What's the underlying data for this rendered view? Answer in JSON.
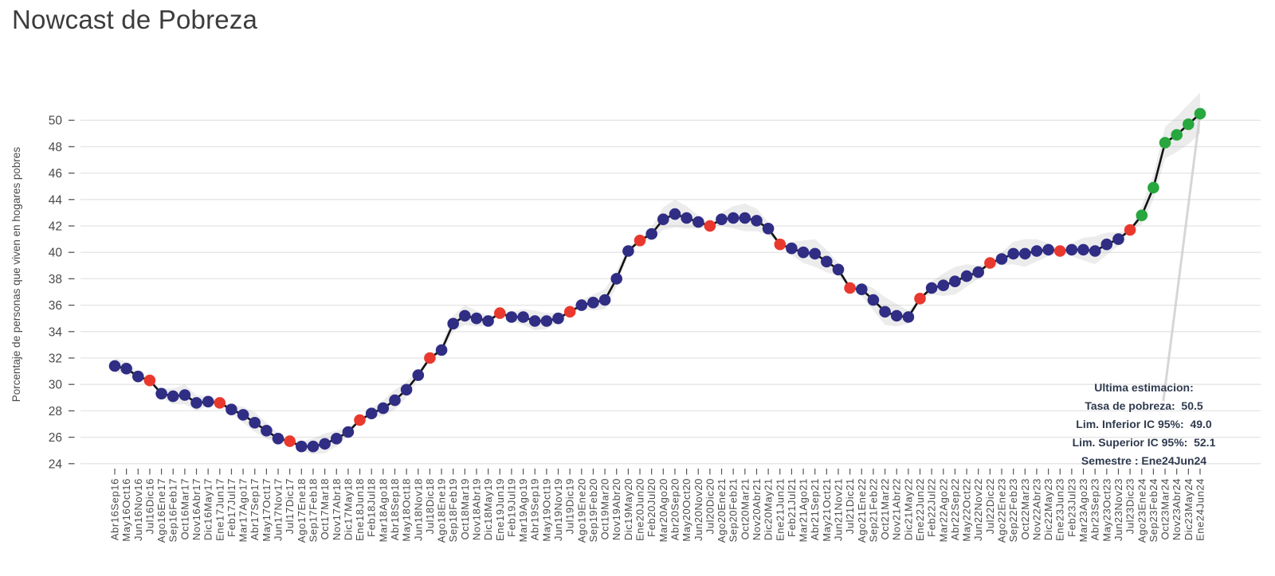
{
  "title": "Nowcast de Pobreza",
  "y_axis": {
    "title": "Porcentaje de personas que viven en hogares pobres",
    "ticks": [
      24,
      26,
      28,
      30,
      32,
      34,
      36,
      38,
      40,
      42,
      44,
      46,
      48,
      50
    ]
  },
  "annotation": {
    "heading": "Ultima estimacion:",
    "rows": [
      {
        "label": "Tasa de pobreza:",
        "value": "50.5"
      },
      {
        "label": "Lim. Inferior IC 95%:",
        "value": "49.0"
      },
      {
        "label": "Lim. Superior IC 95%:",
        "value": "52.1"
      },
      {
        "label": "Semestre :",
        "value": "Ene24Jun24"
      }
    ]
  },
  "colors": {
    "estimate_point": "#302d85",
    "official_point": "#e9392e",
    "nowcast_point": "#28a73e",
    "line": "#121212",
    "band": "rgba(170,170,170,0.22)",
    "grid": "#e4e4e4",
    "tick": "#555555",
    "label_text": "#4a4a4a",
    "leader": "#cfcfcf"
  },
  "chart_data": {
    "type": "line",
    "title": "Nowcast de Pobreza",
    "xlabel": "",
    "ylabel": "Porcentaje de personas que viven en hogares pobres",
    "ylim": [
      23.5,
      52.5
    ],
    "grid": true,
    "legend": false,
    "x": [
      "Abr16Sep16",
      "May16Oct16",
      "Jun16Nov16",
      "Jul16Dic16",
      "Ago16Ene17",
      "Sep16Feb17",
      "Oct16Mar17",
      "Nov16Abr17",
      "Dic16May17",
      "Ene17Jun17",
      "Feb17Jul17",
      "Mar17Ago17",
      "Abr17Sep17",
      "May17Oct17",
      "Jun17Nov17",
      "Jul17Dic17",
      "Ago17Ene18",
      "Sep17Feb18",
      "Oct17Mar18",
      "Nov17Abr18",
      "Dic17May18",
      "Ene18Jun18",
      "Feb18Jul18",
      "Mar18Ago18",
      "Abr18Sep18",
      "May18Oct18",
      "Jun18Nov18",
      "Jul18Dic18",
      "Ago18Ene19",
      "Sep18Feb19",
      "Oct18Mar19",
      "Nov18Abr19",
      "Dic18May19",
      "Ene19Jun19",
      "Feb19Jul19",
      "Mar19Ago19",
      "Abr19Sep19",
      "May19Oct19",
      "Jun19Nov19",
      "Jul19Dic19",
      "Ago19Ene20",
      "Sep19Feb20",
      "Oct19Mar20",
      "Nov19Abr20",
      "Dic19May20",
      "Ene20Jun20",
      "Feb20Jul20",
      "Mar20Ago20",
      "Abr20Sep20",
      "May20Oct20",
      "Jun20Nov20",
      "Jul20Dic20",
      "Ago20Ene21",
      "Sep20Feb21",
      "Oct20Mar21",
      "Nov20Abr21",
      "Dic20May21",
      "Ene21Jun21",
      "Feb21Jul21",
      "Mar21Ago21",
      "Abr21Sep21",
      "May21Oct21",
      "Jun21Nov21",
      "Jul21Dic21",
      "Ago21Ene22",
      "Sep21Feb22",
      "Oct21Mar22",
      "Nov21Abr22",
      "Dic21May22",
      "Ene22Jun22",
      "Feb22Jul22",
      "Mar22Ago22",
      "Abr22Sep22",
      "May22Oct22",
      "Jun22Nov22",
      "Jul22Dic22",
      "Ago22Ene23",
      "Sep22Feb23",
      "Oct22Mar23",
      "Nov22Abr23",
      "Dic22May23",
      "Ene23Jun23",
      "Feb23Jul23",
      "Mar23Ago23",
      "Abr23Sep23",
      "May23Oct23",
      "Jun23Nov23",
      "Jul23Dic23",
      "Ago23Ene24",
      "Sep23Feb24",
      "Oct23Mar24",
      "Nov23Abr24",
      "Dic23May24",
      "Ene24Jun24"
    ],
    "values": [
      31.4,
      31.2,
      30.6,
      30.3,
      29.3,
      29.1,
      29.2,
      28.6,
      28.7,
      28.6,
      28.1,
      27.7,
      27.1,
      26.5,
      25.9,
      25.7,
      25.3,
      25.3,
      25.5,
      25.9,
      26.4,
      27.3,
      27.8,
      28.2,
      28.8,
      29.6,
      30.7,
      32.0,
      32.6,
      34.6,
      35.2,
      35.0,
      34.8,
      35.4,
      35.1,
      35.1,
      34.8,
      34.8,
      35.0,
      35.5,
      36.0,
      36.2,
      36.4,
      38.0,
      40.1,
      40.9,
      41.4,
      42.5,
      42.9,
      42.6,
      42.3,
      42.0,
      42.5,
      42.6,
      42.6,
      42.4,
      41.8,
      40.6,
      40.3,
      40.0,
      39.9,
      39.3,
      38.7,
      37.3,
      37.2,
      36.4,
      35.5,
      35.2,
      35.1,
      36.5,
      37.3,
      37.5,
      37.8,
      38.2,
      38.5,
      39.2,
      39.5,
      39.9,
      39.9,
      40.1,
      40.2,
      40.1,
      40.2,
      40.2,
      40.1,
      40.6,
      41.0,
      41.7,
      42.8,
      44.9,
      48.3,
      48.9,
      49.7,
      50.5
    ],
    "ci_lower": [
      30.9,
      30.8,
      30.3,
      30.3,
      29.0,
      28.5,
      28.5,
      28.0,
      28.4,
      28.6,
      27.8,
      27.1,
      26.4,
      25.9,
      25.6,
      25.7,
      25.0,
      24.7,
      24.8,
      25.3,
      26.1,
      27.3,
      27.5,
      27.6,
      28.1,
      29.0,
      30.4,
      32.0,
      32.3,
      34.0,
      34.5,
      34.4,
      34.5,
      35.4,
      34.8,
      34.5,
      34.1,
      34.2,
      34.7,
      35.5,
      35.7,
      35.6,
      35.7,
      37.4,
      39.8,
      40.9,
      40.9,
      41.7,
      41.9,
      41.8,
      41.8,
      42.0,
      42.0,
      41.8,
      41.6,
      41.6,
      41.3,
      40.6,
      39.8,
      39.2,
      38.9,
      38.5,
      38.2,
      37.3,
      36.7,
      35.6,
      34.5,
      34.4,
      34.6,
      36.5,
      36.8,
      36.7,
      36.8,
      37.4,
      38.0,
      39.2,
      39.0,
      39.1,
      38.9,
      39.3,
      39.7,
      40.1,
      39.7,
      39.4,
      39.1,
      39.8,
      40.5,
      41.7,
      42.1,
      44.0,
      47.1,
      47.6,
      48.2,
      49.0
    ],
    "ci_upper": [
      32.0,
      31.7,
      30.9,
      30.3,
      29.7,
      29.7,
      30.0,
      29.2,
      29.1,
      28.6,
      28.5,
      28.3,
      27.9,
      27.1,
      26.3,
      25.7,
      25.7,
      25.9,
      26.3,
      26.5,
      26.8,
      27.3,
      28.2,
      28.8,
      29.6,
      30.2,
      31.1,
      32.0,
      33.0,
      35.2,
      36.0,
      35.6,
      35.2,
      35.4,
      35.5,
      35.7,
      35.6,
      35.4,
      35.4,
      35.5,
      36.4,
      36.8,
      37.2,
      38.6,
      40.5,
      40.9,
      41.9,
      43.4,
      44.0,
      43.5,
      42.8,
      42.0,
      43.0,
      43.5,
      43.7,
      43.3,
      42.3,
      40.6,
      40.8,
      40.9,
      41.0,
      40.2,
      39.2,
      37.3,
      37.7,
      37.3,
      36.6,
      36.1,
      35.6,
      36.5,
      37.8,
      38.4,
      38.9,
      39.1,
      39.0,
      39.2,
      40.0,
      40.8,
      41.0,
      41.0,
      40.7,
      40.1,
      40.7,
      41.1,
      41.2,
      41.5,
      41.5,
      41.7,
      43.5,
      45.9,
      49.5,
      50.3,
      51.2,
      52.1
    ],
    "official_indices": [
      3,
      9,
      15,
      21,
      27,
      33,
      39,
      45,
      51,
      57,
      63,
      69,
      75,
      81,
      87
    ],
    "nowcast_indices": [
      88,
      89,
      90,
      91,
      92,
      93
    ],
    "last_estimate": {
      "rate": 50.5,
      "ci_low": 49.0,
      "ci_high": 52.1,
      "semester": "Ene24Jun24"
    }
  }
}
